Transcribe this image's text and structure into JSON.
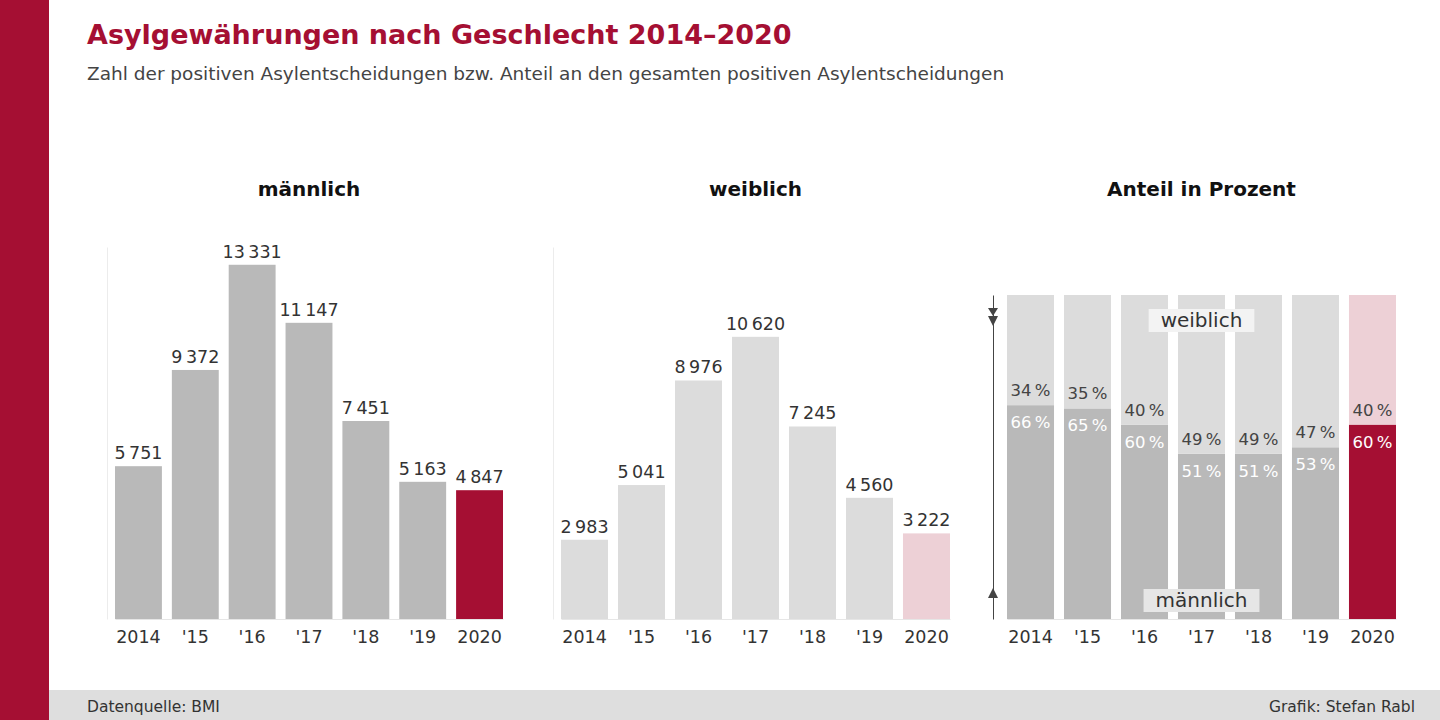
{
  "page": {
    "title": "Asylgewährungen nach Geschlecht 2014–2020",
    "subtitle": "Zahl der positiven Asylentscheidungen bzw. Anteil an den gesamten positiven Asylentscheidungen",
    "source": "Datenquelle: BMI",
    "credit": "Grafik: Stefan Rabl"
  },
  "chart_data": [
    {
      "type": "bar",
      "title": "männlich",
      "categories": [
        "2014",
        "'15",
        "'16",
        "'17",
        "'18",
        "'19",
        "2020"
      ],
      "values": [
        5751,
        9372,
        13331,
        11147,
        7451,
        5163,
        4847
      ],
      "value_labels": [
        "5 751",
        "9 372",
        "13 331",
        "11 147",
        "7 451",
        "5 163",
        "4 847"
      ],
      "colors": [
        "#b9b9b9",
        "#b9b9b9",
        "#b9b9b9",
        "#b9b9b9",
        "#b9b9b9",
        "#b9b9b9",
        "#a50f33"
      ],
      "ylim": [
        0,
        14000
      ],
      "data_labels": true,
      "tick_labels": "x"
    },
    {
      "type": "bar",
      "title": "weiblich",
      "categories": [
        "2014",
        "'15",
        "'16",
        "'17",
        "'18",
        "'19",
        "2020"
      ],
      "values": [
        2983,
        5041,
        8976,
        10620,
        7245,
        4560,
        3222
      ],
      "value_labels": [
        "2 983",
        "5 041",
        "8 976",
        "10 620",
        "7 245",
        "4 560",
        "3 222"
      ],
      "colors": [
        "#dcdcdc",
        "#dcdcdc",
        "#dcdcdc",
        "#dcdcdc",
        "#dcdcdc",
        "#dcdcdc",
        "#edd0d6"
      ],
      "ylim": [
        0,
        14000
      ],
      "data_labels": true,
      "tick_labels": "x"
    },
    {
      "type": "bar",
      "title": "Anteil in Prozent",
      "stacked": true,
      "categories": [
        "2014",
        "'15",
        "'16",
        "'17",
        "'18",
        "'19",
        "2020"
      ],
      "series": [
        {
          "name": "männlich",
          "values": [
            66,
            65,
            60,
            51,
            51,
            53,
            60
          ],
          "value_labels": [
            "66 %",
            "65 %",
            "60 %",
            "51 %",
            "51 %",
            "53 %",
            "60 %"
          ],
          "colors": [
            "#b9b9b9",
            "#b9b9b9",
            "#b9b9b9",
            "#b9b9b9",
            "#b9b9b9",
            "#b9b9b9",
            "#a50f33"
          ]
        },
        {
          "name": "weiblich",
          "values": [
            34,
            35,
            40,
            49,
            49,
            47,
            40
          ],
          "value_labels": [
            "34 %",
            "35 %",
            "40 %",
            "49 %",
            "49 %",
            "47 %",
            "40 %"
          ],
          "colors": [
            "#dcdcdc",
            "#dcdcdc",
            "#dcdcdc",
            "#dcdcdc",
            "#dcdcdc",
            "#dcdcdc",
            "#edd0d6"
          ]
        }
      ],
      "ylim": [
        0,
        100
      ],
      "data_labels": true,
      "tick_labels": "x"
    }
  ]
}
